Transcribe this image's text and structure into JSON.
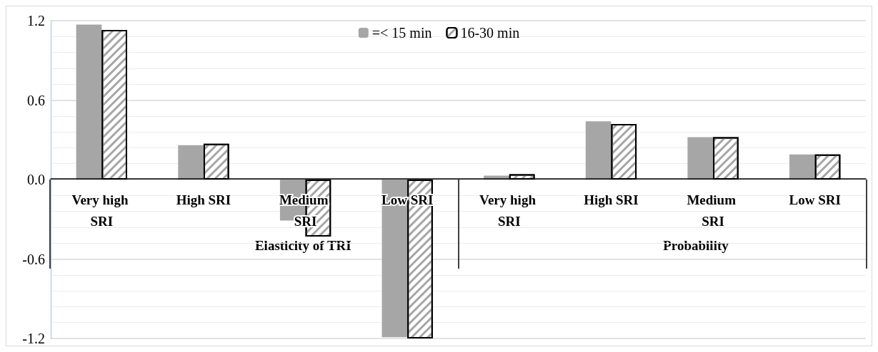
{
  "chart_data": {
    "type": "bar",
    "categories": [
      "Very high SRI",
      "High SRI",
      "Medium SRI",
      "Low SRI",
      "Very high SRI",
      "High SRI",
      "Medium SRI",
      "Low SRI"
    ],
    "series": [
      {
        "name": "=< 15 min",
        "color": "#a6a6a6",
        "values": [
          1.17,
          0.26,
          -0.31,
          -1.19,
          0.03,
          0.44,
          0.32,
          0.19
        ]
      },
      {
        "name": "16-30 min",
        "color": "#ffffff",
        "values": [
          1.13,
          0.27,
          -0.43,
          -1.2,
          0.04,
          0.42,
          0.32,
          0.19
        ]
      }
    ],
    "annotations": [
      "Elasticity of TRI",
      "Probability"
    ],
    "ylim": [
      -1.2,
      1.2
    ],
    "yticks": [
      -1.2,
      -0.6,
      {
        "value": 0,
        "label": "0.0"
      },
      0.6,
      1.2
    ],
    "grid": "y",
    "legend": "top"
  }
}
